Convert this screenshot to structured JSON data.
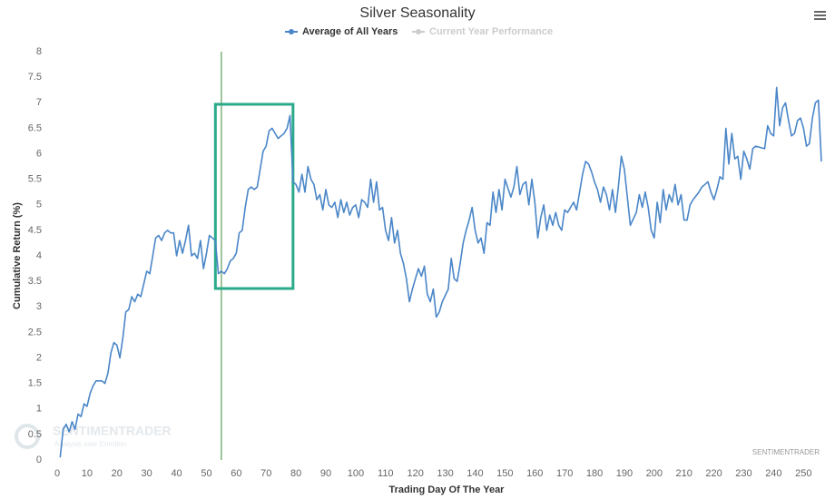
{
  "chart_data": {
    "type": "line",
    "title": "Silver Seasonality",
    "x_label": "Trading Day Of The Year",
    "y_label": "Cumulative Return (%)",
    "series": [
      {
        "name": "Average of All Years",
        "color": "#4a86c8",
        "x": [
          1,
          2,
          3,
          4,
          5,
          6,
          7,
          8,
          9,
          10,
          11,
          12,
          13,
          14,
          15,
          16,
          17,
          18,
          19,
          20,
          21,
          22,
          23,
          24,
          25,
          26,
          27,
          28,
          29,
          30,
          31,
          32,
          33,
          34,
          35,
          36,
          37,
          38,
          39,
          40,
          41,
          42,
          43,
          44,
          45,
          46,
          47,
          48,
          49,
          50,
          51,
          52,
          53,
          54,
          55,
          56,
          57,
          58,
          59,
          60,
          61,
          62,
          63,
          64,
          65,
          66,
          67,
          68,
          69,
          70,
          71,
          72,
          73,
          74,
          75,
          76,
          77,
          78,
          79,
          80,
          81,
          82,
          83,
          84,
          85,
          86,
          87,
          88,
          89,
          90,
          91,
          92,
          93,
          94,
          95,
          96,
          97,
          98,
          99,
          100,
          101,
          102,
          103,
          104,
          105,
          106,
          107,
          108,
          109,
          110,
          111,
          112,
          113,
          114,
          115,
          116,
          117,
          118,
          119,
          120,
          121,
          122,
          123,
          124,
          125,
          126,
          127,
          128,
          129,
          131,
          132,
          133,
          134,
          135,
          136,
          137,
          138,
          139,
          140,
          141,
          142,
          143,
          144,
          145,
          146,
          147,
          148,
          149,
          150,
          152,
          153,
          154,
          155,
          156,
          157,
          158,
          159,
          160,
          161,
          162,
          163,
          164,
          165,
          166,
          167,
          168,
          169,
          170,
          171,
          173,
          174,
          175,
          176,
          177,
          178,
          179,
          180,
          181,
          182,
          183,
          184,
          185,
          186,
          187,
          188,
          189,
          190,
          191,
          192,
          194,
          195,
          196,
          197,
          198,
          199,
          200,
          201,
          202,
          203,
          204,
          205,
          206,
          207,
          208,
          209,
          210,
          211,
          212,
          213,
          215,
          216,
          217,
          218,
          219,
          220,
          221,
          222,
          223,
          224,
          225,
          226,
          227,
          228,
          229,
          230,
          231,
          232,
          233,
          234,
          237,
          238,
          239,
          240,
          241,
          242,
          243,
          244,
          245,
          246,
          247,
          248,
          249,
          250,
          251,
          252,
          253,
          254,
          255,
          256
        ],
        "values": [
          0.05,
          0.6,
          0.7,
          0.55,
          0.75,
          0.6,
          0.9,
          0.85,
          1.1,
          1.05,
          1.3,
          1.45,
          1.55,
          1.55,
          1.55,
          1.5,
          1.7,
          2.1,
          2.3,
          2.25,
          2.0,
          2.4,
          2.9,
          2.95,
          3.2,
          3.1,
          3.25,
          3.2,
          3.45,
          3.7,
          3.65,
          4.0,
          4.35,
          4.4,
          4.3,
          4.45,
          4.5,
          4.45,
          4.45,
          4.0,
          4.3,
          4.05,
          4.3,
          4.6,
          4.0,
          4.05,
          3.95,
          4.3,
          3.75,
          4.05,
          4.4,
          4.35,
          4.3,
          3.65,
          3.7,
          3.65,
          3.75,
          3.9,
          3.95,
          4.05,
          4.45,
          4.5,
          4.95,
          5.3,
          5.35,
          5.3,
          5.35,
          5.7,
          6.05,
          6.15,
          6.45,
          6.5,
          6.4,
          6.3,
          6.35,
          6.4,
          6.5,
          6.75,
          5.45,
          5.4,
          5.25,
          5.6,
          5.25,
          5.75,
          5.5,
          5.4,
          5.1,
          5.2,
          4.9,
          5.3,
          5.0,
          4.95,
          5.05,
          4.75,
          5.1,
          4.85,
          5.05,
          4.8,
          4.95,
          5.0,
          4.75,
          5.1,
          5.05,
          4.95,
          5.5,
          5.05,
          5.45,
          4.9,
          4.95,
          4.5,
          4.3,
          4.75,
          4.25,
          4.5,
          4.05,
          3.85,
          3.55,
          3.1,
          3.35,
          3.55,
          3.75,
          3.6,
          3.8,
          3.25,
          3.1,
          3.35,
          2.8,
          2.9,
          3.1,
          3.35,
          3.95,
          3.55,
          3.5,
          3.85,
          4.25,
          4.5,
          4.7,
          4.95,
          4.5,
          4.25,
          4.35,
          4.05,
          4.65,
          4.6,
          5.25,
          4.85,
          5.3,
          4.9,
          5.5,
          5.15,
          5.35,
          5.75,
          5.2,
          5.4,
          5.45,
          5.0,
          5.5,
          5.05,
          4.35,
          4.75,
          5.0,
          4.5,
          4.8,
          4.6,
          4.85,
          4.6,
          4.5,
          4.9,
          4.85,
          5.05,
          4.9,
          5.25,
          5.6,
          5.85,
          5.8,
          5.65,
          5.45,
          5.3,
          5.05,
          5.35,
          5.2,
          4.9,
          5.3,
          4.85,
          5.35,
          5.95,
          5.7,
          5.15,
          4.6,
          4.85,
          5.2,
          4.95,
          5.25,
          4.95,
          4.5,
          4.35,
          5.05,
          4.65,
          5.3,
          4.9,
          5.2,
          5.05,
          5.4,
          5.0,
          5.2,
          4.7,
          4.7,
          5.0,
          5.1,
          5.25,
          5.35,
          5.4,
          5.45,
          5.25,
          5.1,
          5.3,
          5.55,
          5.5,
          6.5,
          5.8,
          6.4,
          5.9,
          5.95,
          5.5,
          6.05,
          5.9,
          5.7,
          6.1,
          6.15,
          6.1,
          6.55,
          6.4,
          6.35,
          7.3,
          6.55,
          6.9,
          7.0,
          6.65,
          6.35,
          6.4,
          6.65,
          6.7,
          6.5,
          6.15,
          6.2,
          6.7,
          7.0,
          7.05,
          5.85
        ]
      }
    ],
    "inactive_legend": {
      "name": "Current Year Performance",
      "color": "#cccccc"
    },
    "xlim": [
      0,
      256
    ],
    "xticks": [
      0,
      10,
      20,
      30,
      40,
      50,
      60,
      70,
      80,
      90,
      100,
      110,
      120,
      130,
      140,
      150,
      160,
      170,
      180,
      190,
      200,
      210,
      220,
      230,
      240,
      250
    ],
    "ylim": [
      0,
      8
    ],
    "yticks": [
      0,
      0.5,
      1,
      1.5,
      2,
      2.5,
      3,
      3.5,
      4,
      4.5,
      5,
      5.5,
      6,
      6.5,
      7,
      7.5,
      8
    ],
    "highlight_line": {
      "x": 55,
      "color": "#7fb27f"
    },
    "highlight_box": {
      "x": [
        53,
        79
      ],
      "y": [
        3.36,
        6.97
      ],
      "color": "#2aaa8a"
    },
    "watermarks": {
      "corner": "SENTIMENTRADER",
      "logo": "SENTIMENTRADER",
      "logo_tagline": "Analysis over Emotion"
    }
  }
}
